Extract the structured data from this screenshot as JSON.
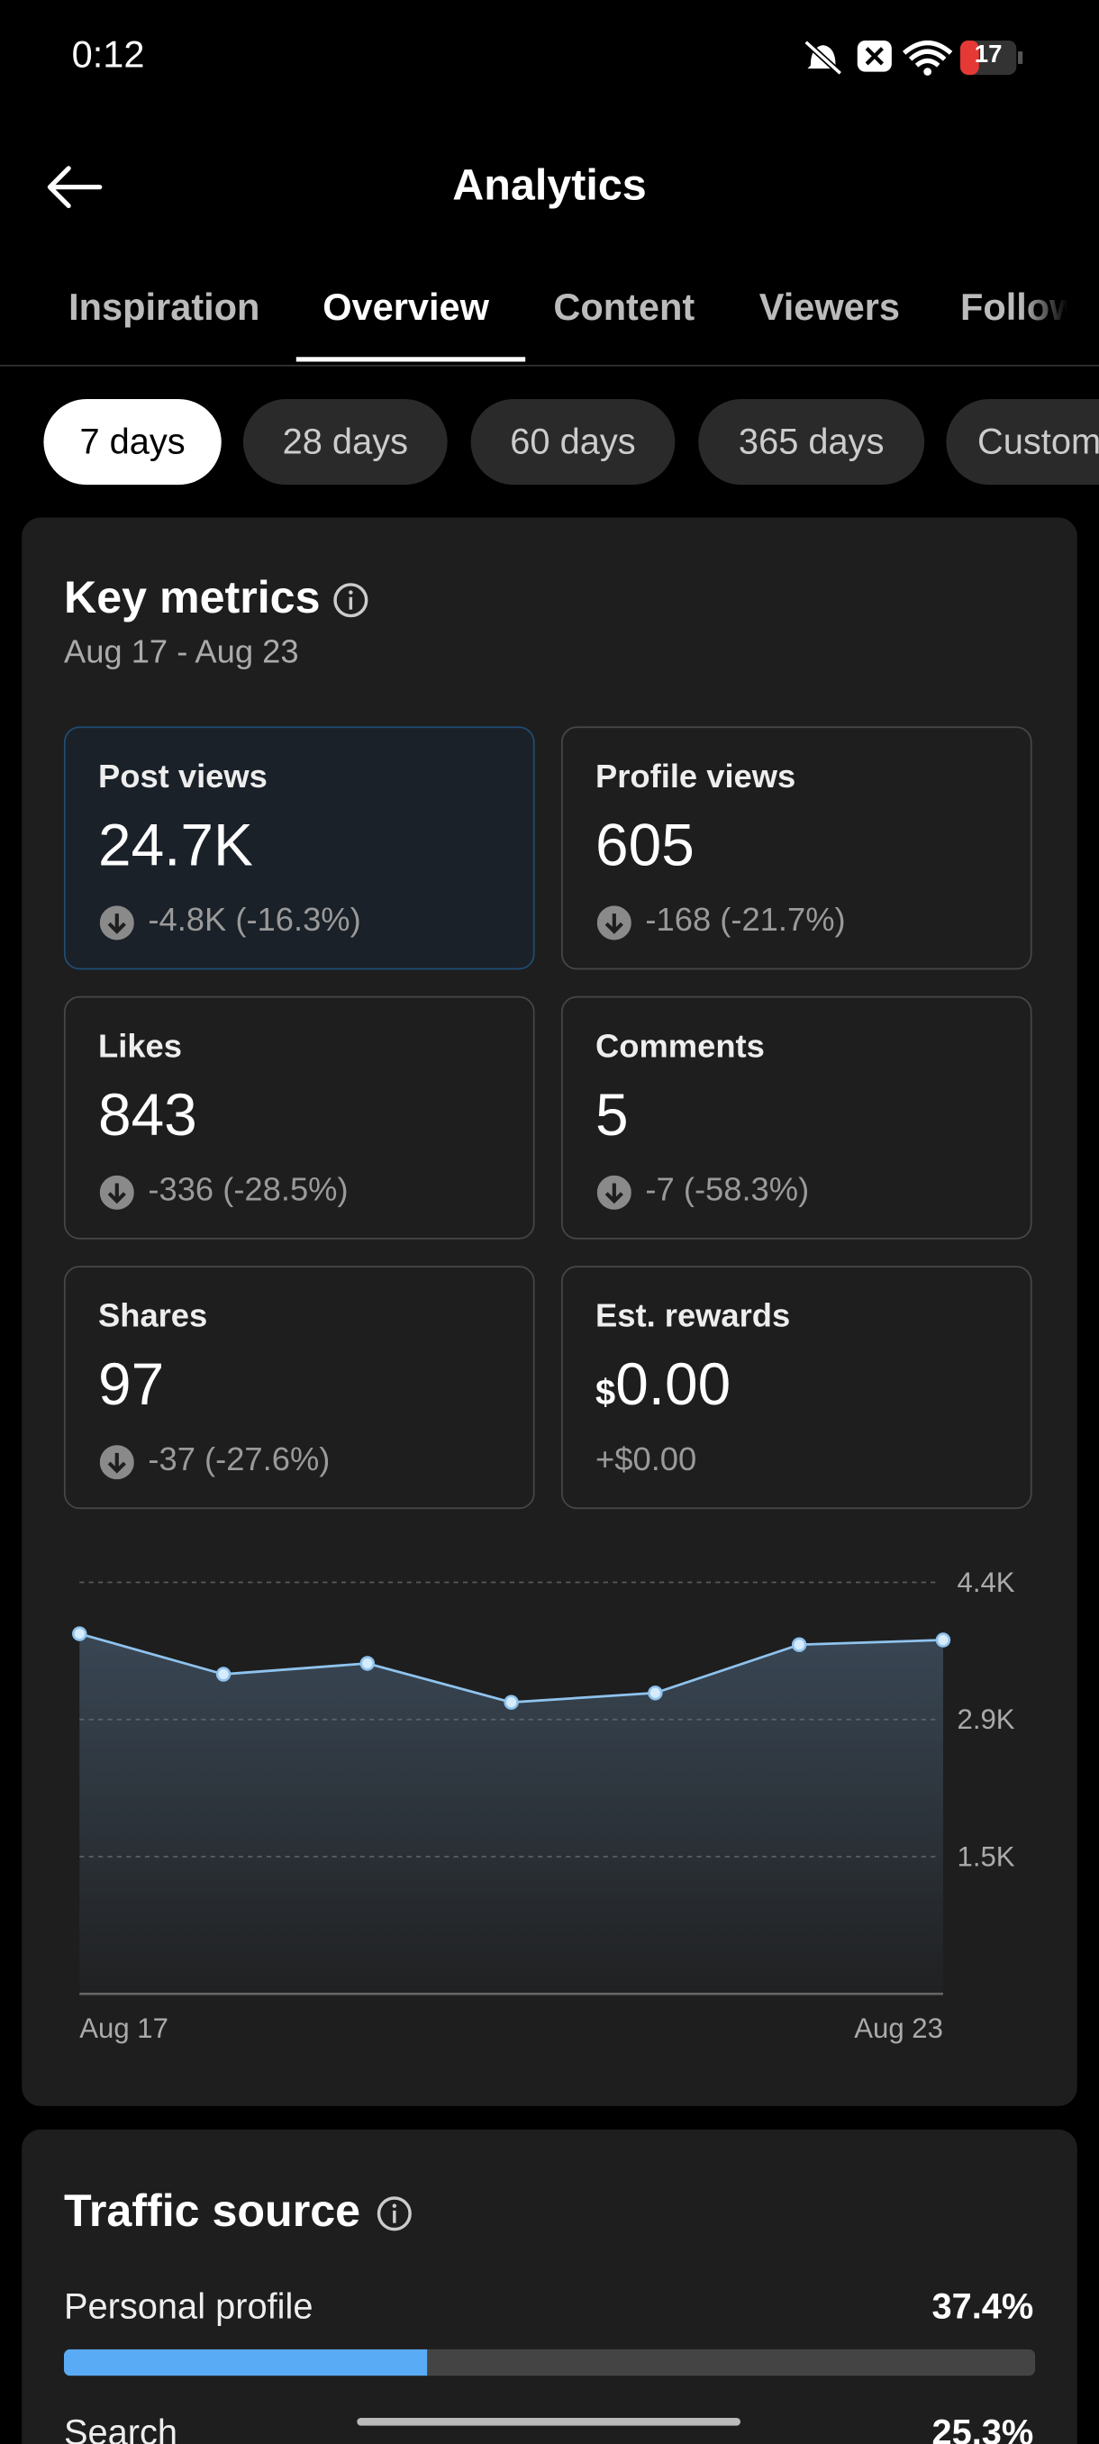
{
  "status_bar": {
    "time": "0:12",
    "battery": "17"
  },
  "header": {
    "title": "Analytics"
  },
  "tabs": [
    "Inspiration",
    "Overview",
    "Content",
    "Viewers",
    "Followers"
  ],
  "ranges": [
    "7 days",
    "28 days",
    "60 days",
    "365 days",
    "Custom"
  ],
  "key_metrics": {
    "title": "Key metrics",
    "date_range": "Aug 17 - Aug 23",
    "cards": [
      {
        "label": "Post views",
        "value": "24.7K",
        "change": "-4.8K (-16.3%)"
      },
      {
        "label": "Profile views",
        "value": "605",
        "change": "-168 (-21.7%)"
      },
      {
        "label": "Likes",
        "value": "843",
        "change": "-336 (-28.5%)"
      },
      {
        "label": "Comments",
        "value": "5",
        "change": "-7 (-58.3%)"
      },
      {
        "label": "Shares",
        "value": "97",
        "change": "-37 (-27.6%)"
      },
      {
        "label": "Est. rewards",
        "currency": "$",
        "value": "0.00",
        "change": "+$0.00"
      }
    ]
  },
  "chart_data": {
    "type": "line",
    "categories": [
      "Aug 17",
      null,
      null,
      null,
      null,
      null,
      "Aug 23"
    ],
    "values": [
      3850,
      3417,
      3533,
      3117,
      3217,
      3733,
      3783
    ],
    "color": "#8fc3ee",
    "ylim": [
      0,
      4400
    ],
    "yticks": [
      {
        "value": 1467,
        "label": "1.5K"
      },
      {
        "value": 2933,
        "label": "2.9K"
      },
      {
        "value": 4400,
        "label": "4.4K"
      }
    ],
    "grid": true
  },
  "traffic_source": {
    "title": "Traffic source",
    "items": [
      {
        "label": "Personal profile",
        "value": 37.4,
        "value_label": "37.4%"
      },
      {
        "label": "Search",
        "value": 25.3,
        "value_label": "25.3%"
      }
    ]
  }
}
